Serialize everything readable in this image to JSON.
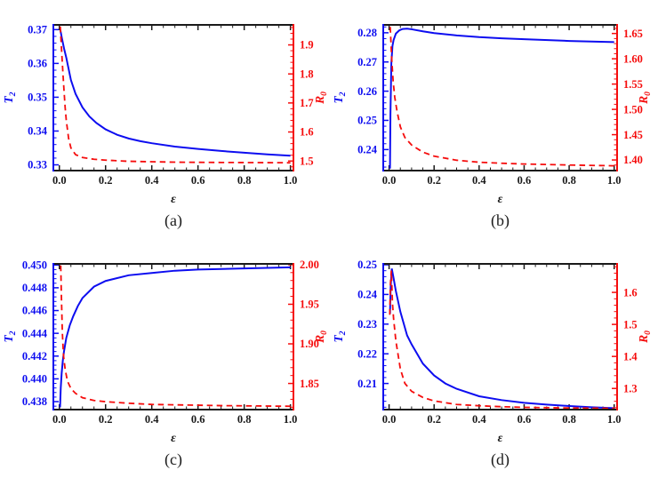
{
  "figure": {
    "background": "#ffffff"
  },
  "colors": {
    "blue": "#0d0df0",
    "red": "#f50d0d",
    "frame": "#1a1a1a"
  },
  "chart_data": [
    {
      "panel": "a",
      "caption": "(a)",
      "type": "line",
      "xlabel": "ε",
      "x_axis": {
        "lim": [
          -0.026,
          1.013
        ],
        "ticks": [
          0,
          0.2,
          0.4,
          0.6,
          0.8,
          1.0
        ],
        "tick_labels": [
          "0.0",
          "0.2",
          "0.4",
          "0.6",
          "0.8",
          "1.0"
        ],
        "minor_step": 0.05
      },
      "left_axis": {
        "label": "T",
        "label_sub": "2",
        "color": "#0d0df0",
        "lim": [
          0.3283,
          0.3714
        ],
        "ticks": [
          0.33,
          0.34,
          0.35,
          0.36,
          0.37
        ],
        "tick_labels": [
          "0.33",
          "0.34",
          "0.35",
          "0.36",
          "0.37"
        ],
        "minor_step": 0.002
      },
      "right_axis": {
        "label": "R",
        "label_sub": "0",
        "color": "#f50d0d",
        "lim": [
          1.467,
          1.969
        ],
        "ticks": [
          1.5,
          1.6,
          1.7,
          1.8,
          1.9
        ],
        "tick_labels": [
          "1.5",
          "1.6",
          "1.7",
          "1.8",
          "1.9"
        ],
        "minor_step": 0.02
      },
      "series": [
        {
          "name": "T2",
          "axis": "left",
          "style": "solid",
          "color": "#0d0df0",
          "x": [
            0.004,
            0.01,
            0.02,
            0.03,
            0.05,
            0.07,
            0.1,
            0.13,
            0.16,
            0.2,
            0.25,
            0.3,
            0.35,
            0.4,
            0.5,
            0.6,
            0.7,
            0.8,
            0.9,
            1.0
          ],
          "y": [
            0.37,
            0.3678,
            0.3645,
            0.3617,
            0.3551,
            0.351,
            0.347,
            0.3443,
            0.3424,
            0.3405,
            0.3389,
            0.3378,
            0.337,
            0.3364,
            0.3354,
            0.3347,
            0.3341,
            0.3336,
            0.3331,
            0.3327
          ]
        },
        {
          "name": "R0",
          "axis": "right",
          "style": "dashed",
          "color": "#f50d0d",
          "x": [
            0.004,
            0.008,
            0.012,
            0.016,
            0.02,
            0.025,
            0.03,
            0.04,
            0.05,
            0.07,
            0.1,
            0.15,
            0.2,
            0.3,
            0.5,
            0.7,
            1.0
          ],
          "y": [
            1.963,
            1.905,
            1.85,
            1.795,
            1.745,
            1.685,
            1.64,
            1.578,
            1.545,
            1.522,
            1.512,
            1.506,
            1.503,
            1.499,
            1.496,
            1.495,
            1.494
          ]
        }
      ]
    },
    {
      "panel": "b",
      "caption": "(b)",
      "type": "line",
      "xlabel": "ε",
      "x_axis": {
        "lim": [
          -0.026,
          1.013
        ],
        "ticks": [
          0,
          0.2,
          0.4,
          0.6,
          0.8,
          1.0
        ],
        "tick_labels": [
          "0.0",
          "0.2",
          "0.4",
          "0.6",
          "0.8",
          "1.0"
        ],
        "minor_step": 0.05
      },
      "left_axis": {
        "label": "T",
        "label_sub": "2",
        "color": "#0d0df0",
        "lim": [
          0.2328,
          0.2827
        ],
        "ticks": [
          0.24,
          0.25,
          0.26,
          0.27,
          0.28
        ],
        "tick_labels": [
          "0.24",
          "0.25",
          "0.26",
          "0.27",
          "0.28"
        ],
        "minor_step": 0.002
      },
      "right_axis": {
        "label": "R",
        "label_sub": "0",
        "color": "#f50d0d",
        "lim": [
          1.379,
          1.667
        ],
        "ticks": [
          1.4,
          1.45,
          1.5,
          1.55,
          1.6,
          1.65
        ],
        "tick_labels": [
          "1.40",
          "1.45",
          "1.50",
          "1.55",
          "1.60",
          "1.65"
        ],
        "minor_step": 0.01
      },
      "series": [
        {
          "name": "T2",
          "axis": "left",
          "style": "solid",
          "color": "#0d0df0",
          "x": [
            0.004,
            0.006,
            0.01,
            0.015,
            0.02,
            0.03,
            0.045,
            0.06,
            0.08,
            0.1,
            0.15,
            0.2,
            0.3,
            0.4,
            0.5,
            0.6,
            0.8,
            1.0
          ],
          "y": [
            0.2335,
            0.252,
            0.2695,
            0.2755,
            0.2775,
            0.2797,
            0.2808,
            0.2813,
            0.2814,
            0.2812,
            0.2805,
            0.2799,
            0.2791,
            0.2785,
            0.2781,
            0.2778,
            0.2772,
            0.2768
          ]
        },
        {
          "name": "R0",
          "axis": "right",
          "style": "dashed",
          "color": "#f50d0d",
          "x": [
            0.005,
            0.008,
            0.012,
            0.018,
            0.025,
            0.035,
            0.05,
            0.07,
            0.1,
            0.15,
            0.2,
            0.3,
            0.4,
            0.5,
            0.6,
            0.8,
            1.0
          ],
          "y": [
            1.663,
            1.636,
            1.597,
            1.556,
            1.5245,
            1.497,
            1.4655,
            1.4445,
            1.4295,
            1.4155,
            1.4075,
            1.3995,
            1.3955,
            1.3935,
            1.392,
            1.39,
            1.3885
          ]
        }
      ]
    },
    {
      "panel": "c",
      "caption": "(c)",
      "type": "line",
      "xlabel": "ε",
      "x_axis": {
        "lim": [
          -0.026,
          1.013
        ],
        "ticks": [
          0,
          0.2,
          0.4,
          0.6,
          0.8,
          1.0
        ],
        "tick_labels": [
          "0.0",
          "0.2",
          "0.4",
          "0.6",
          "0.8",
          "1.0"
        ],
        "minor_step": 0.05
      },
      "left_axis": {
        "label": "T",
        "label_sub": "2",
        "color": "#0d0df0",
        "lim": [
          0.4373,
          0.4501
        ],
        "ticks": [
          0.438,
          0.44,
          0.442,
          0.444,
          0.446,
          0.448,
          0.45
        ],
        "tick_labels": [
          "0.438",
          "0.440",
          "0.442",
          "0.444",
          "0.446",
          "0.448",
          "0.450"
        ],
        "minor_step": 0.0004
      },
      "right_axis": {
        "label": "R",
        "label_sub": "0",
        "color": "#f50d0d",
        "lim": [
          1.817,
          2.001
        ],
        "ticks": [
          1.85,
          1.9,
          1.95,
          2.0
        ],
        "tick_labels": [
          "1.85",
          "1.90",
          "1.95",
          "2.00"
        ],
        "minor_step": 0.01
      },
      "series": [
        {
          "name": "T2",
          "axis": "left",
          "style": "solid",
          "color": "#0d0df0",
          "x": [
            0.003,
            0.006,
            0.01,
            0.015,
            0.02,
            0.03,
            0.045,
            0.06,
            0.08,
            0.1,
            0.15,
            0.2,
            0.3,
            0.4,
            0.5,
            0.6,
            0.8,
            1.0
          ],
          "y": [
            0.4375,
            0.4392,
            0.4405,
            0.4416,
            0.4424,
            0.4436,
            0.4447,
            0.4455,
            0.4464,
            0.4471,
            0.4481,
            0.4486,
            0.4491,
            0.4493,
            0.4495,
            0.4496,
            0.4497,
            0.4498
          ]
        },
        {
          "name": "R0",
          "axis": "right",
          "style": "dashed",
          "color": "#f50d0d",
          "x": [
            0.006,
            0.009,
            0.013,
            0.018,
            0.025,
            0.035,
            0.05,
            0.07,
            0.1,
            0.15,
            0.2,
            0.3,
            0.4,
            0.5,
            0.7,
            1.0
          ],
          "y": [
            1.999,
            1.958,
            1.914,
            1.885,
            1.868,
            1.853,
            1.8435,
            1.8375,
            1.832,
            1.8285,
            1.827,
            1.825,
            1.8235,
            1.823,
            1.822,
            1.8212
          ]
        }
      ]
    },
    {
      "panel": "d",
      "caption": "(d)",
      "type": "line",
      "xlabel": "ε",
      "x_axis": {
        "lim": [
          -0.026,
          1.013
        ],
        "ticks": [
          0,
          0.2,
          0.4,
          0.6,
          0.8,
          1.0
        ],
        "tick_labels": [
          "0.0",
          "0.2",
          "0.4",
          "0.6",
          "0.8",
          "1.0"
        ],
        "minor_step": 0.05
      },
      "left_axis": {
        "label": "T",
        "label_sub": "2",
        "color": "#0d0df0",
        "lim": [
          0.2012,
          0.2503
        ],
        "ticks": [
          0.21,
          0.22,
          0.23,
          0.24,
          0.25
        ],
        "tick_labels": [
          "0.21",
          "0.22",
          "0.23",
          "0.24",
          "0.25"
        ],
        "minor_step": 0.002
      },
      "right_axis": {
        "label": "R",
        "label_sub": "0",
        "color": "#f50d0d",
        "lim": [
          1.234,
          1.689
        ],
        "ticks": [
          1.3,
          1.4,
          1.5,
          1.6
        ],
        "tick_labels": [
          "1.3",
          "1.4",
          "1.5",
          "1.6"
        ],
        "minor_step": 0.02
      },
      "series": [
        {
          "name": "T2",
          "axis": "left",
          "style": "solid",
          "color": "#0d0df0",
          "x": [
            0.004,
            0.007,
            0.012,
            0.02,
            0.03,
            0.05,
            0.08,
            0.1,
            0.15,
            0.2,
            0.25,
            0.3,
            0.4,
            0.5,
            0.6,
            0.7,
            0.8,
            0.9,
            1.0
          ],
          "y": [
            0.2335,
            0.2425,
            0.2487,
            0.2455,
            0.2412,
            0.2342,
            0.2262,
            0.2232,
            0.2167,
            0.2127,
            0.21,
            0.2082,
            0.2057,
            0.2044,
            0.2035,
            0.2029,
            0.2024,
            0.202,
            0.2017
          ]
        },
        {
          "name": "R0",
          "axis": "right",
          "style": "dashed",
          "color": "#f50d0d",
          "x": [
            0.003,
            0.006,
            0.01,
            0.015,
            0.02,
            0.03,
            0.05,
            0.07,
            0.1,
            0.15,
            0.2,
            0.3,
            0.4,
            0.5,
            0.6,
            0.8,
            1.0
          ],
          "y": [
            1.53,
            1.627,
            1.668,
            1.566,
            1.518,
            1.449,
            1.361,
            1.316,
            1.291,
            1.272,
            1.261,
            1.25,
            1.246,
            1.243,
            1.241,
            1.239,
            1.238
          ]
        }
      ]
    }
  ]
}
